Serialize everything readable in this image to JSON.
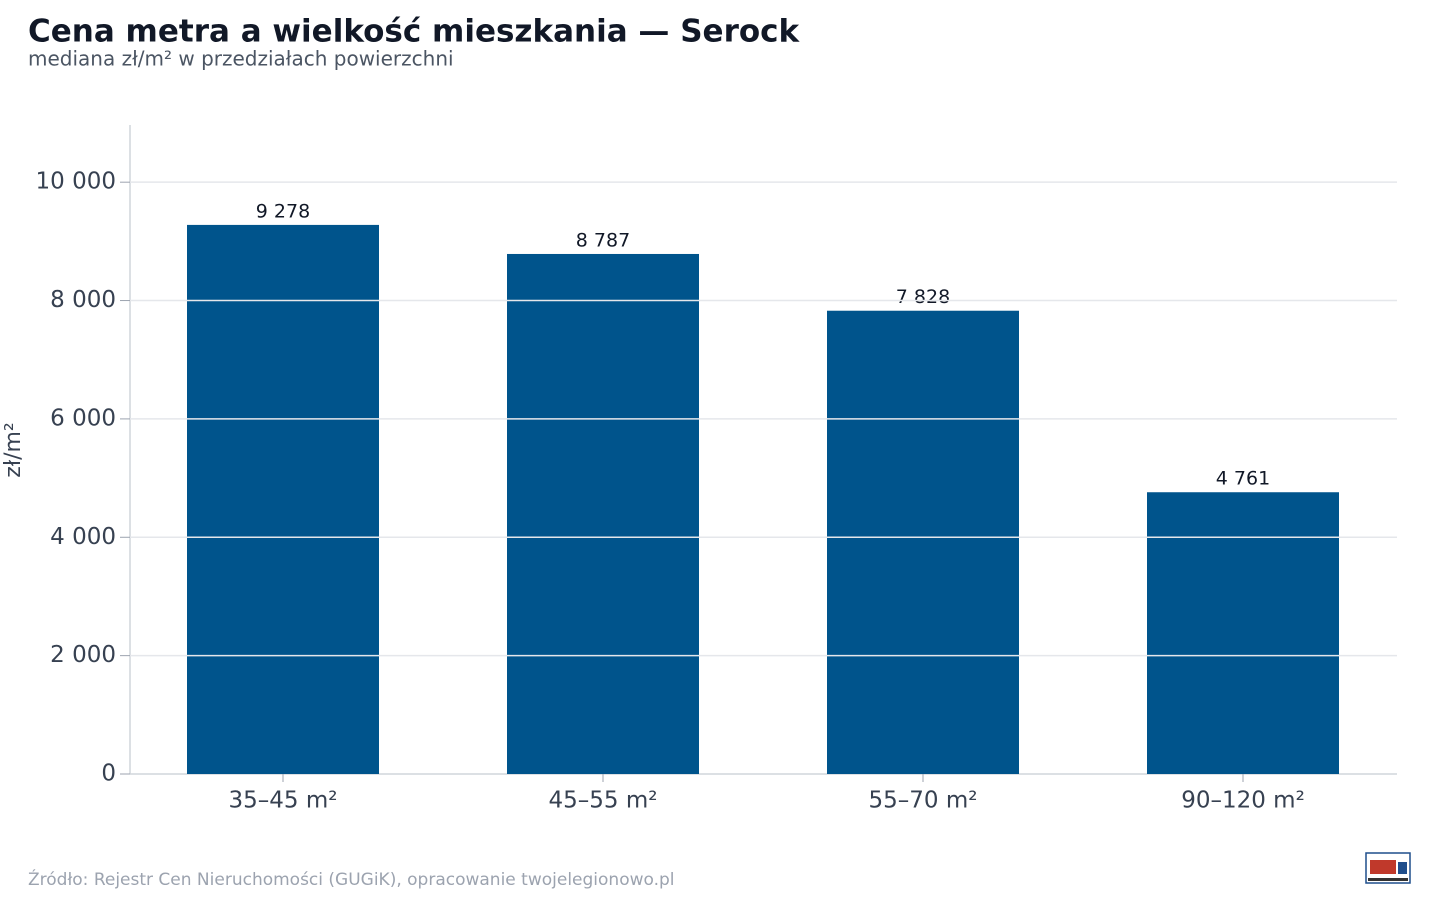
{
  "chart_data": {
    "type": "bar",
    "title": "Cena metra a wielkość mieszkania — Serock",
    "subtitle": "mediana zł/m² w przedziałach powierzchni",
    "y_label": "zł/m²",
    "source": "Źródło: Rejestr Cen Nieruchomości (GUGiK), opracowanie twojelegionowo.pl",
    "categories": [
      "35–45 m²",
      "45–55 m²",
      "55–70 m²",
      "90–120 m²"
    ],
    "values": [
      9278,
      8787,
      7828,
      4761
    ],
    "value_labels": [
      "9 278",
      "8 787",
      "7 828",
      "4 761"
    ],
    "color": "#00548c",
    "ylim": [
      0,
      11000
    ],
    "yticks": [
      0,
      {
        "value": 2000,
        "label": "2 000"
      },
      {
        "value": 4000,
        "label": "4 000"
      },
      {
        "value": 6000,
        "label": "6 000"
      },
      {
        "value": 8000,
        "label": "8 000"
      },
      {
        "value": 10000,
        "label": "10 000"
      }
    ],
    "grid": true
  }
}
